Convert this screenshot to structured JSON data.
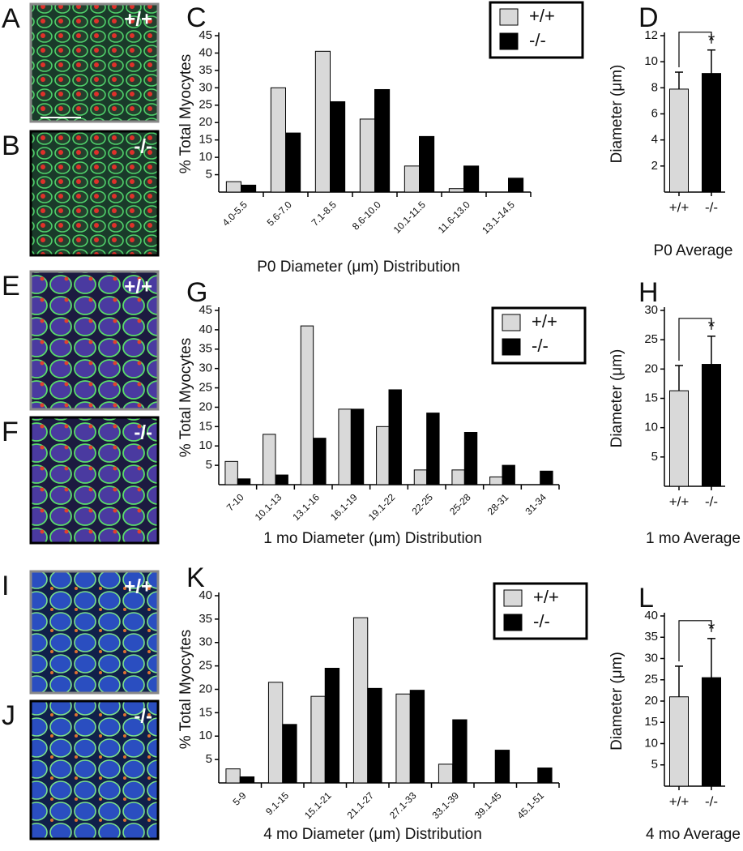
{
  "images": [
    {
      "panel": "A",
      "label": "+/+"
    },
    {
      "panel": "B",
      "label": "-/-"
    },
    {
      "panel": "E",
      "label": "+/+"
    },
    {
      "panel": "F",
      "label": "-/-"
    },
    {
      "panel": "I",
      "label": "+/+"
    },
    {
      "panel": "J",
      "label": "-/-"
    }
  ],
  "chart_data": [
    {
      "type": "bar",
      "panel": "C",
      "xlabel": "P0 Diameter (μm) Distribution",
      "ylabel": "% Total Myocytes",
      "categories": [
        "4.0-5.5",
        "5.6-7.0",
        "7.1-8.5",
        "8.6-10.0",
        "10.1-11.5",
        "11.6-13.0",
        "13.1-14.5"
      ],
      "series": [
        {
          "name": "+/+",
          "color": "#d9d9d9",
          "values": [
            3,
            30,
            40.5,
            21,
            7.5,
            1,
            0
          ]
        },
        {
          "name": "-/-",
          "color": "#000000",
          "values": [
            2,
            17,
            26,
            29.5,
            16,
            7.5,
            4
          ]
        }
      ],
      "ylim": [
        0,
        45
      ],
      "yticks": [
        5,
        10,
        15,
        20,
        25,
        30,
        35,
        40,
        45
      ],
      "legend": "top-right"
    },
    {
      "type": "bar",
      "panel": "D",
      "xlabel": "P0 Average",
      "ylabel": "Diameter (μm)",
      "categories": [
        "+/+",
        "-/-"
      ],
      "values": [
        7.9,
        9.1
      ],
      "errors": [
        1.3,
        1.8
      ],
      "colors": [
        "#d9d9d9",
        "#000000"
      ],
      "annotation": "*",
      "ylim": [
        0,
        12
      ],
      "yticks": [
        2,
        4,
        6,
        8,
        10,
        12
      ]
    },
    {
      "type": "bar",
      "panel": "G",
      "xlabel": "1 mo Diameter (μm) Distribution",
      "ylabel": "% Total Myocytes",
      "categories": [
        "7-10",
        "10.1-13",
        "13.1-16",
        "16.1-19",
        "19.1-22",
        "22-25",
        "25-28",
        "28-31",
        "31-34"
      ],
      "series": [
        {
          "name": "+/+",
          "color": "#d9d9d9",
          "values": [
            6,
            13,
            41,
            19.5,
            15,
            3.8,
            3.8,
            2,
            0
          ]
        },
        {
          "name": "-/-",
          "color": "#000000",
          "values": [
            1.5,
            2.5,
            12,
            19.5,
            24.5,
            18.5,
            13.5,
            5,
            3.5
          ]
        }
      ],
      "ylim": [
        0,
        45
      ],
      "yticks": [
        5,
        10,
        15,
        20,
        25,
        30,
        35,
        40,
        45
      ],
      "legend": "top-right"
    },
    {
      "type": "bar",
      "panel": "H",
      "xlabel": "1 mo Average",
      "ylabel": "Diameter (μm)",
      "categories": [
        "+/+",
        "-/-"
      ],
      "values": [
        16.3,
        20.8
      ],
      "errors": [
        4.3,
        4.8
      ],
      "colors": [
        "#d9d9d9",
        "#000000"
      ],
      "annotation": "*",
      "ylim": [
        0,
        30
      ],
      "yticks": [
        5,
        10,
        15,
        20,
        25,
        30
      ]
    },
    {
      "type": "bar",
      "panel": "K",
      "xlabel": "4 mo Diameter (μm) Distribution",
      "ylabel": "% Total Myocytes",
      "categories": [
        "5-9",
        "9.1-15",
        "15.1-21",
        "21.1-27",
        "27.1-33",
        "33.1-39",
        "39.1-45",
        "45.1-51"
      ],
      "series": [
        {
          "name": "+/+",
          "color": "#d9d9d9",
          "values": [
            3,
            21.5,
            18.5,
            35.3,
            19,
            4,
            0,
            0
          ]
        },
        {
          "name": "-/-",
          "color": "#000000",
          "values": [
            1.3,
            12.5,
            24.5,
            20.2,
            19.8,
            13.5,
            7,
            3.2
          ]
        }
      ],
      "ylim": [
        0,
        40
      ],
      "yticks": [
        5,
        10,
        15,
        20,
        25,
        30,
        35,
        40
      ],
      "legend": "top-right"
    },
    {
      "type": "bar",
      "panel": "L",
      "xlabel": "4 mo Average",
      "ylabel": "Diameter (μm)",
      "categories": [
        "+/+",
        "-/-"
      ],
      "values": [
        21,
        25.5
      ],
      "errors": [
        7.2,
        9.2
      ],
      "colors": [
        "#d9d9d9",
        "#000000"
      ],
      "annotation": "*",
      "ylim": [
        0,
        40
      ],
      "yticks": [
        5,
        10,
        15,
        20,
        25,
        30,
        35,
        40
      ]
    }
  ]
}
